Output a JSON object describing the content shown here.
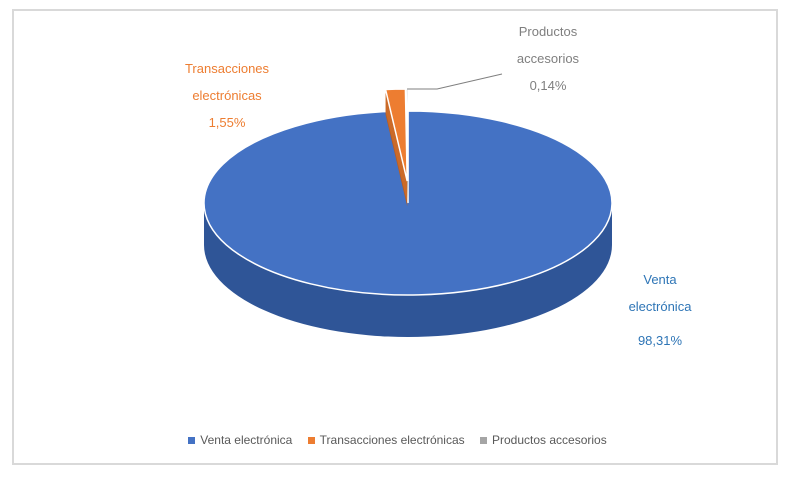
{
  "chart_data": {
    "type": "pie",
    "style": "3d",
    "slices": [
      {
        "label": "Venta electrónica",
        "value": 98.31,
        "value_label": "98,31%",
        "color": "#4472c4",
        "side_color": "#2f5597"
      },
      {
        "label": "Transacciones electrónicas",
        "value": 1.55,
        "value_label": "1,55%",
        "color": "#ed7d31",
        "side_color": "#c55a11",
        "data_label": "Transacciones electrónicas 1,55%"
      },
      {
        "label": "Productos accesorios",
        "value": 0.14,
        "value_label": "0,14%",
        "color": "#a5a5a5",
        "side_color": "#7f7f7f",
        "data_label": "Productos accesorios 0,14%"
      }
    ],
    "labels": {
      "venta_line1": "Venta",
      "venta_line2": "electrónica",
      "venta_line3": "98,31%",
      "trans_line1": "Transacciones",
      "trans_line2": "electrónicas",
      "trans_line3": "1,55%",
      "prod_line1": "Productos",
      "prod_line2": "accesorios",
      "prod_line3": "0,14%"
    },
    "legend": [
      {
        "label": "Venta electrónica",
        "color": "#4472c4"
      },
      {
        "label": "Transacciones electrónicas",
        "color": "#ed7d31"
      },
      {
        "label": "Productos accesorios",
        "color": "#a5a5a5"
      }
    ],
    "legend_position": "bottom"
  }
}
